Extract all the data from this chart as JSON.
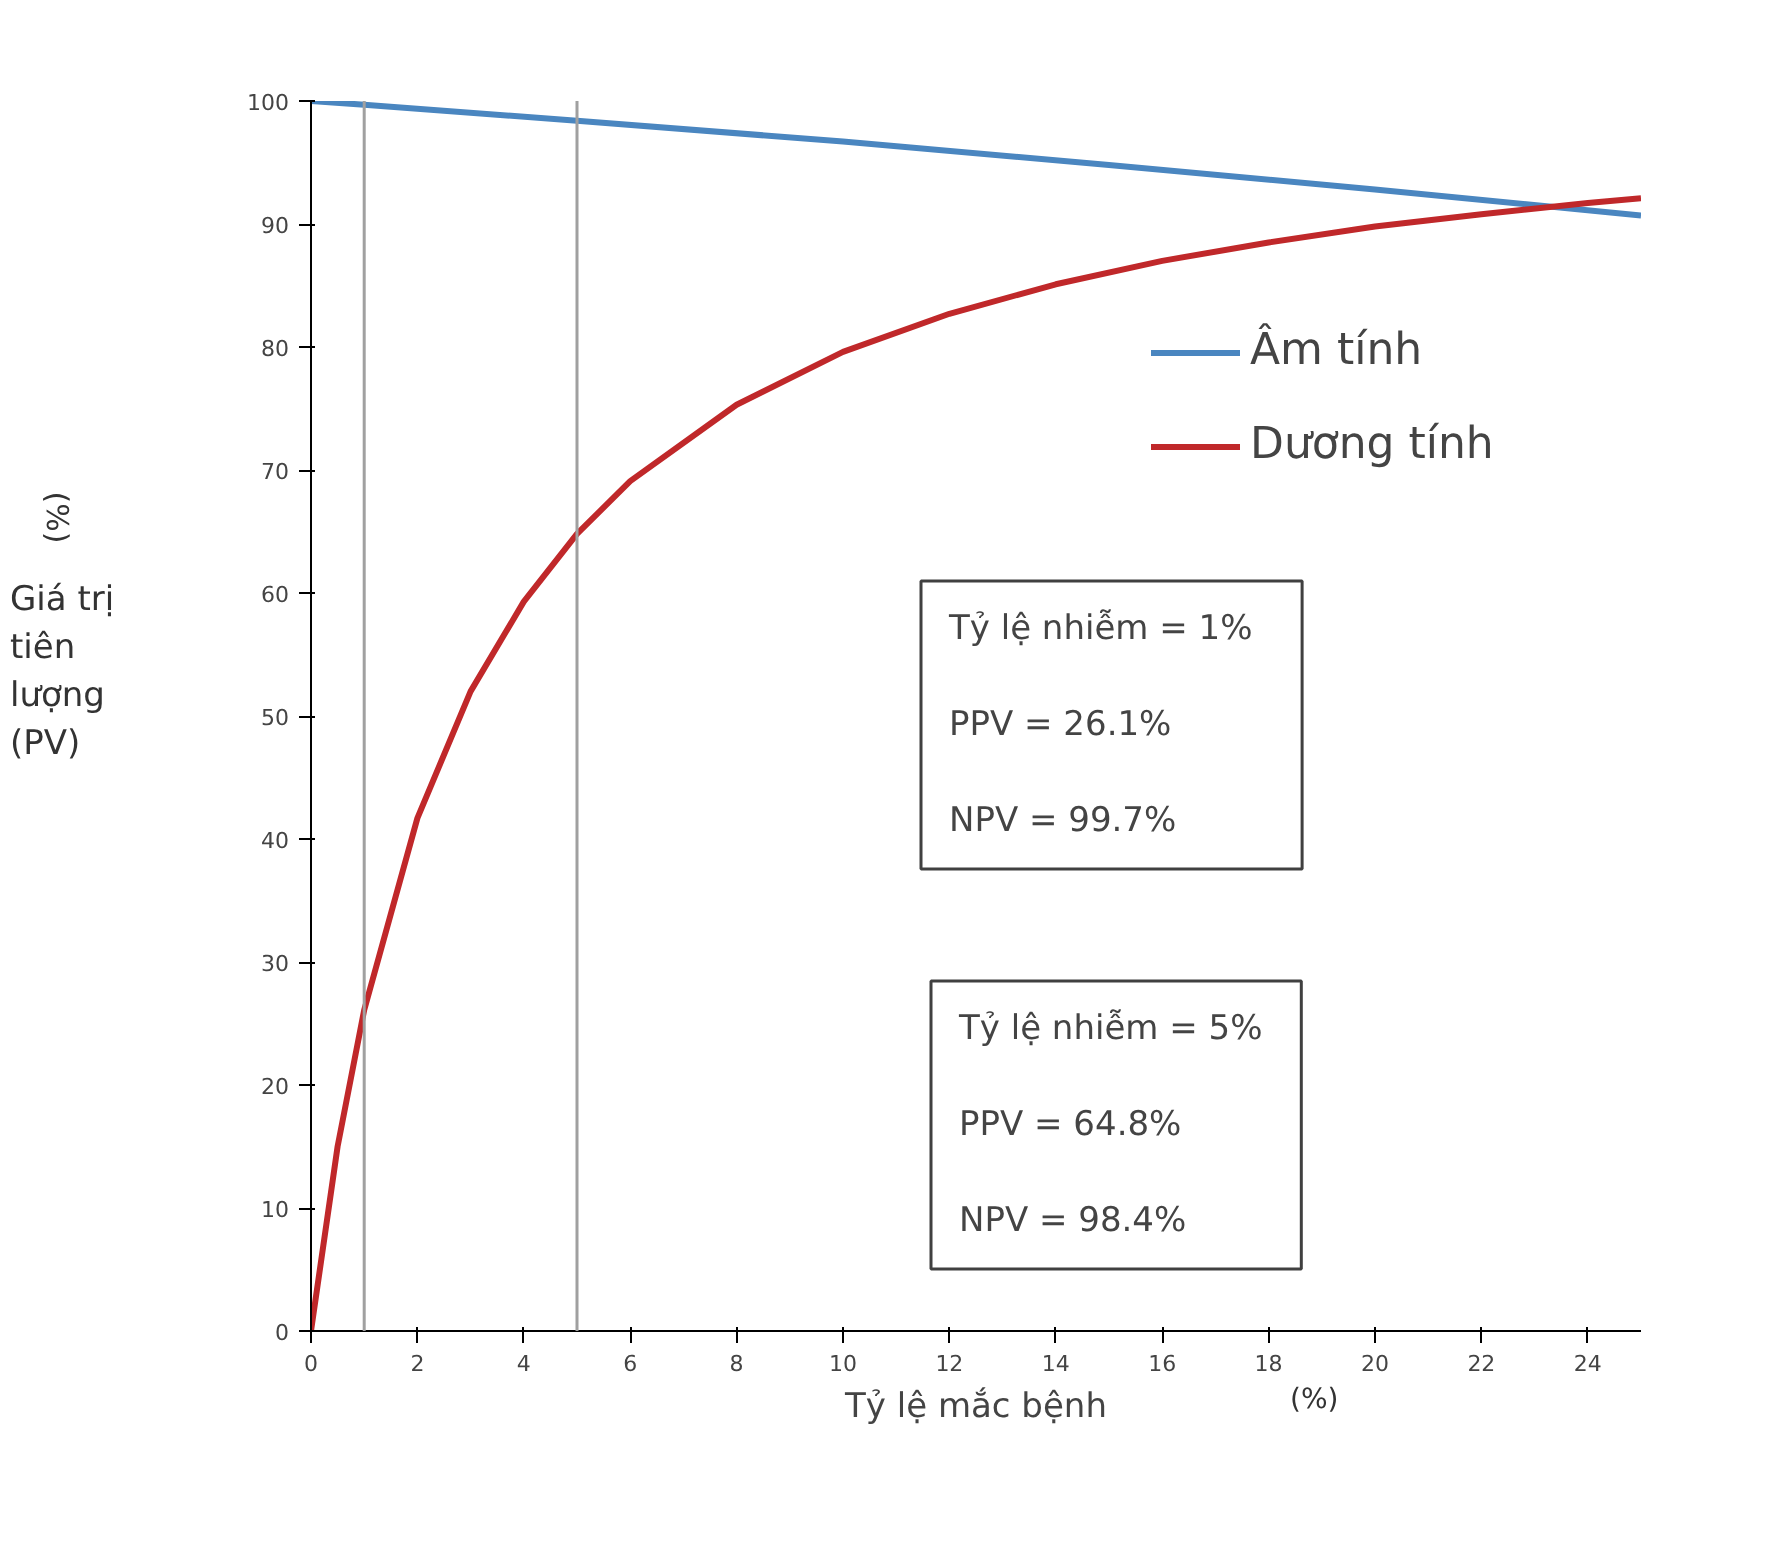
{
  "chart_data": {
    "type": "line",
    "xlabel": "Tỷ lệ mắc bệnh",
    "ylabel": "Giá trị\ntiên\nlượng\n(PV)",
    "annotations": [
      "(%)",
      "(%)",
      "Tỷ lệ nhiễm   = 1%\n\n   PPV = 26.1%\n\n   NPV = 99.7%",
      "Tỷ lệ nhiễm  = 5%\n\n   PPV = 64.8%\n\n   NPV = 98.4%"
    ],
    "xlim": [
      0,
      25
    ],
    "xticks": [
      0,
      2,
      4,
      6,
      8,
      10,
      12,
      14,
      16,
      18,
      20,
      22,
      24
    ],
    "ylim": [
      0,
      100
    ],
    "yticks": [
      0,
      10,
      20,
      30,
      40,
      50,
      60,
      70,
      80,
      90,
      100
    ],
    "grid": false,
    "legend": "top right",
    "marker": "none",
    "line_style": "solid",
    "ref_lines": [
      {
        "axis": "x",
        "value": 1,
        "color": "#a0a0a0"
      },
      {
        "axis": "x",
        "value": 5,
        "color": "#a0a0a0"
      }
    ],
    "series": [
      {
        "name": "Âm tính",
        "color": "#4a86c0",
        "x": [
          0,
          1,
          5,
          10,
          15,
          20,
          25
        ],
        "values": [
          100,
          99.7,
          98.4,
          96.7,
          94.8,
          92.8,
          90.7
        ]
      },
      {
        "name": "Dương tính",
        "color": "#c0282a",
        "x": [
          0,
          0.5,
          1,
          2,
          3,
          4,
          5,
          6,
          8,
          10,
          12,
          14,
          16,
          18,
          20,
          22,
          24,
          25
        ],
        "values": [
          0,
          15.0,
          26.1,
          41.7,
          52.0,
          59.3,
          64.8,
          69.1,
          75.3,
          79.6,
          82.7,
          85.1,
          87.0,
          88.5,
          89.8,
          90.8,
          91.7,
          92.1
        ]
      }
    ]
  }
}
